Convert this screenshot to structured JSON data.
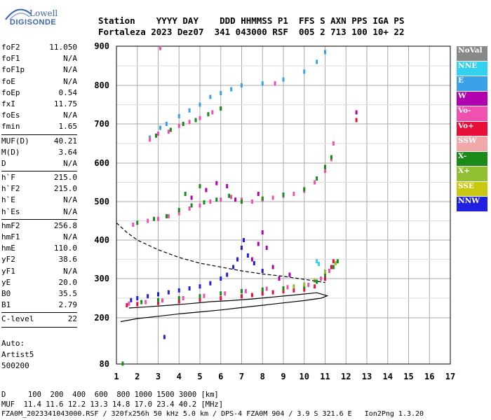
{
  "logo": {
    "line1": "Lowell",
    "line2": "DIGISONDE"
  },
  "header": {
    "labels": "Station    YYYY DAY    DDD HHMMSS P1  FFS S AXN PPS IGA PS",
    "values": "Fortaleza 2023 Dez07  341 043000 RSF  005 2 713 100 10+ 22"
  },
  "params": [
    {
      "name": "foF2",
      "value": "11.050"
    },
    {
      "name": "foF1",
      "value": "N/A"
    },
    {
      "name": "foF1p",
      "value": "N/A"
    },
    {
      "name": "foE",
      "value": "N/A"
    },
    {
      "name": "foEp",
      "value": "0.54"
    },
    {
      "name": "fxI",
      "value": "11.75"
    },
    {
      "name": "foEs",
      "value": "N/A"
    },
    {
      "name": "fmin",
      "value": "1.65",
      "sep": true
    },
    {
      "name": "MUF(D)",
      "value": "40.21"
    },
    {
      "name": "M(D)",
      "value": "3.64"
    },
    {
      "name": "D",
      "value": "N/A",
      "sep": true
    },
    {
      "name": "h`F",
      "value": "215.0"
    },
    {
      "name": "h`F2",
      "value": "215.0"
    },
    {
      "name": "h`E",
      "value": "N/A"
    },
    {
      "name": "h`Es",
      "value": "N/A",
      "sep": true
    },
    {
      "name": "hmF2",
      "value": "256.8"
    },
    {
      "name": "hmF1",
      "value": "N/A"
    },
    {
      "name": "hmE",
      "value": "110.0"
    },
    {
      "name": "yF2",
      "value": "38.6"
    },
    {
      "name": "yF1",
      "value": "N/A"
    },
    {
      "name": "yE",
      "value": "20.0"
    },
    {
      "name": "B0",
      "value": "35.5"
    },
    {
      "name": "B1",
      "value": "2.79",
      "sep": true
    },
    {
      "name": "C-level",
      "value": "22",
      "sep": true
    }
  ],
  "auto": {
    "line1": "Auto:",
    "line2": "Artist5",
    "line3": "500200"
  },
  "legend": [
    {
      "label": "NoVal",
      "color": "#888888"
    },
    {
      "label": "NNE",
      "color": "#33d0f0"
    },
    {
      "label": "E",
      "color": "#3aa0e8"
    },
    {
      "label": "W",
      "color": "#b000b0"
    },
    {
      "label": "Vo-",
      "color": "#f050b0"
    },
    {
      "label": "Vo+",
      "color": "#e8103a"
    },
    {
      "label": "SSW",
      "color": "#f0a8a8"
    },
    {
      "label": "X-",
      "color": "#1a8a1a"
    },
    {
      "label": "X+",
      "color": "#90c030"
    },
    {
      "label": "SSE",
      "color": "#c8c810"
    },
    {
      "label": "NNW",
      "color": "#2020e0"
    }
  ],
  "chart_data": {
    "type": "scatter",
    "xlim": [
      1,
      17
    ],
    "ylim_km": [
      80,
      900
    ],
    "x_ticks": [
      "1",
      "2",
      "3",
      "4",
      "5",
      "6",
      "7",
      "8",
      "9",
      "10",
      "11",
      "12",
      "13",
      "14",
      "15",
      "16",
      "17"
    ],
    "y_ticks": [
      "80",
      "200",
      "300",
      "400",
      "500",
      "600",
      "700",
      "800",
      "900"
    ],
    "grid": true,
    "traces": [
      {
        "mode": "E",
        "color": "#3aa0e8",
        "points": [
          [
            2.6,
            665
          ],
          [
            3.1,
            690
          ],
          [
            3.4,
            700
          ],
          [
            4,
            720
          ],
          [
            4.5,
            735
          ],
          [
            5,
            750
          ],
          [
            5.5,
            770
          ],
          [
            6,
            780
          ],
          [
            6.5,
            790
          ],
          [
            7,
            800
          ],
          [
            8,
            805
          ],
          [
            9,
            815
          ],
          [
            10,
            835
          ],
          [
            10.6,
            860
          ],
          [
            11,
            885
          ]
        ]
      },
      {
        "mode": "Vo-",
        "color": "#f050b0",
        "points": [
          [
            2.6,
            660
          ],
          [
            3,
            675
          ],
          [
            3.5,
            680
          ],
          [
            4,
            695
          ],
          [
            4.5,
            705
          ],
          [
            5,
            715
          ],
          [
            5.6,
            730
          ],
          [
            6,
            740
          ],
          [
            3.1,
            895
          ],
          [
            8.6,
            805
          ]
        ]
      },
      {
        "mode": "X-",
        "color": "#1a8a1a",
        "points": [
          [
            2.9,
            670
          ],
          [
            3.6,
            685
          ],
          [
            4.2,
            700
          ],
          [
            4.8,
            710
          ],
          [
            5.4,
            725
          ],
          [
            6,
            740
          ]
        ]
      },
      {
        "mode": "Vo-",
        "color": "#f050b0",
        "points": [
          [
            1.8,
            440
          ],
          [
            2.5,
            450
          ],
          [
            3,
            455
          ],
          [
            3.5,
            462
          ],
          [
            4,
            470
          ],
          [
            4.5,
            482
          ],
          [
            5,
            490
          ],
          [
            5.5,
            500
          ],
          [
            6,
            505
          ],
          [
            6.5,
            512
          ],
          [
            7,
            505
          ],
          [
            7.5,
            500
          ],
          [
            8,
            505
          ],
          [
            8.5,
            510
          ],
          [
            9,
            515
          ],
          [
            9.5,
            520
          ],
          [
            10,
            528
          ],
          [
            10.5,
            550
          ],
          [
            11,
            580
          ],
          [
            11.3,
            610
          ],
          [
            11.4,
            650
          ]
        ]
      },
      {
        "mode": "X-",
        "color": "#1a8a1a",
        "points": [
          [
            2,
            445
          ],
          [
            2.8,
            455
          ],
          [
            3.4,
            462
          ],
          [
            4,
            478
          ],
          [
            4.6,
            490
          ],
          [
            5.2,
            498
          ],
          [
            5.8,
            505
          ],
          [
            6.4,
            515
          ],
          [
            7,
            500
          ],
          [
            8,
            508
          ],
          [
            9,
            518
          ],
          [
            10,
            532
          ],
          [
            10.6,
            560
          ],
          [
            11,
            590
          ],
          [
            11.3,
            615
          ],
          [
            4.3,
            520
          ],
          [
            5,
            540
          ]
        ]
      },
      {
        "mode": "W",
        "color": "#b000b0",
        "points": [
          [
            4.6,
            510
          ],
          [
            5.3,
            530
          ],
          [
            5.8,
            548
          ],
          [
            6.3,
            540
          ],
          [
            6.7,
            505
          ],
          [
            7.8,
            520
          ]
        ]
      },
      {
        "mode": "NNW",
        "color": "#2020e0",
        "points": [
          [
            1.7,
            245
          ],
          [
            2,
            250
          ],
          [
            2.5,
            255
          ],
          [
            3,
            260
          ],
          [
            3.5,
            265
          ],
          [
            4,
            270
          ],
          [
            4.5,
            275
          ],
          [
            5,
            280
          ],
          [
            5.5,
            288
          ],
          [
            6,
            300
          ],
          [
            6.3,
            310
          ],
          [
            6.6,
            330
          ],
          [
            6.8,
            350
          ],
          [
            7,
            380
          ],
          [
            7.1,
            400
          ],
          [
            7.3,
            360
          ],
          [
            7.6,
            340
          ],
          [
            8,
            320
          ],
          [
            3.3,
            150
          ]
        ]
      },
      {
        "mode": "W",
        "color": "#b000b0",
        "points": [
          [
            7.5,
            350
          ],
          [
            7.8,
            390
          ],
          [
            8,
            420
          ],
          [
            8.2,
            380
          ],
          [
            8.5,
            330
          ],
          [
            8.8,
            300
          ],
          [
            9.3,
            310
          ],
          [
            12.5,
            730
          ]
        ]
      },
      {
        "mode": "Vo+",
        "color": "#e8103a",
        "points": [
          [
            1.5,
            232
          ],
          [
            2,
            235
          ],
          [
            3,
            238
          ],
          [
            4,
            242
          ],
          [
            5,
            246
          ],
          [
            6,
            250
          ],
          [
            7,
            255
          ],
          [
            7.5,
            258
          ],
          [
            8,
            262
          ],
          [
            8.5,
            265
          ],
          [
            9,
            268
          ],
          [
            9.5,
            270
          ],
          [
            10,
            272
          ],
          [
            10.5,
            280
          ],
          [
            11,
            300
          ],
          [
            11.3,
            330
          ],
          [
            11.4,
            345
          ],
          [
            12.5,
            710
          ]
        ]
      },
      {
        "mode": "Vo-",
        "color": "#f050b0",
        "points": [
          [
            1.6,
            236
          ],
          [
            2.4,
            240
          ],
          [
            3.2,
            244
          ],
          [
            4.2,
            250
          ],
          [
            5.2,
            256
          ],
          [
            6.2,
            262
          ],
          [
            7.2,
            268
          ],
          [
            8.2,
            274
          ],
          [
            9.2,
            278
          ],
          [
            10.2,
            284
          ],
          [
            10.8,
            300
          ],
          [
            11.2,
            320
          ]
        ]
      },
      {
        "mode": "X-",
        "color": "#1a8a1a",
        "points": [
          [
            2.2,
            240
          ],
          [
            3,
            245
          ],
          [
            4,
            250
          ],
          [
            5,
            255
          ],
          [
            6,
            262
          ],
          [
            7,
            268
          ],
          [
            8,
            272
          ],
          [
            9,
            275
          ],
          [
            10,
            280
          ],
          [
            10.6,
            292
          ],
          [
            11,
            310
          ],
          [
            11.4,
            330
          ],
          [
            11.6,
            345
          ],
          [
            1.3,
            81
          ]
        ]
      },
      {
        "mode": "X+",
        "color": "#90c030",
        "points": [
          [
            9.5,
            280
          ],
          [
            10,
            285
          ],
          [
            10.5,
            295
          ],
          [
            11,
            318
          ],
          [
            11.5,
            340
          ]
        ]
      },
      {
        "mode": "NNE",
        "color": "#33d0f0",
        "points": [
          [
            10.6,
            345
          ],
          [
            10.7,
            338
          ]
        ]
      }
    ],
    "lines": [
      {
        "name": "profile",
        "style": "solid",
        "points": [
          [
            1.2,
            190
          ],
          [
            2,
            198
          ],
          [
            3,
            204
          ],
          [
            4,
            210
          ],
          [
            5,
            215
          ],
          [
            6,
            220
          ],
          [
            7,
            226
          ],
          [
            8,
            232
          ],
          [
            9,
            238
          ],
          [
            10,
            244
          ],
          [
            10.8,
            250
          ],
          [
            11.1,
            256
          ],
          [
            10.6,
            264
          ],
          [
            9.5,
            258
          ],
          [
            8.5,
            253
          ],
          [
            7.5,
            248
          ],
          [
            6.5,
            244
          ],
          [
            5.5,
            241
          ],
          [
            4.5,
            236
          ],
          [
            3.5,
            232
          ],
          [
            2.5,
            228
          ],
          [
            1.6,
            225
          ]
        ]
      },
      {
        "name": "MUF curve",
        "style": "dashed",
        "points": [
          [
            1,
            445
          ],
          [
            1.5,
            420
          ],
          [
            2,
            400
          ],
          [
            3,
            375
          ],
          [
            4,
            355
          ],
          [
            5,
            340
          ],
          [
            6,
            330
          ],
          [
            7,
            320
          ],
          [
            8,
            312
          ],
          [
            9,
            306
          ],
          [
            10,
            298
          ],
          [
            11,
            290
          ]
        ]
      }
    ]
  },
  "footer": {
    "line1": "D     100  200  400  600  800 1000 1500 3000 [km]",
    "line2": "MUF  11.4 11.6 12.2 13.3 14.8 17.0 23.4 40.2 [MHz]",
    "line3": "FZA0M_2023341043000.RSF / 320fx256h 50 kHz 5.0 km / DPS-4 FZA0M 904 / 3.9 S 321.6 E   Ion2Png 1.3.20"
  }
}
